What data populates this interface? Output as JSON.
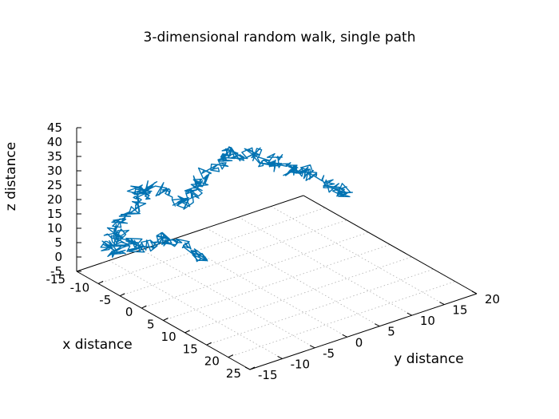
{
  "chart_data": {
    "type": "line",
    "projection": "3d",
    "title": "3-dimensional random walk, single path",
    "xlabel": "x distance",
    "ylabel": "y distance",
    "zlabel": "z distance",
    "xlim": [
      -15,
      25
    ],
    "ylim": [
      -15,
      20
    ],
    "zlim": [
      -5,
      45
    ],
    "grid": true,
    "x_ticks": [
      "-10",
      "-5",
      "0",
      "5",
      "10",
      "15",
      "20",
      "25"
    ],
    "y_ticks": [
      "-15",
      "-10",
      "-5",
      "0",
      "5",
      "10",
      "15",
      "20"
    ],
    "z_ticks": [
      "-5",
      "0",
      "5",
      "10",
      "15",
      "20",
      "25",
      "30",
      "35",
      "40",
      "45"
    ],
    "x_tick_values": [
      -10,
      -5,
      0,
      5,
      10,
      15,
      20,
      25
    ],
    "y_tick_values": [
      -15,
      -10,
      -5,
      0,
      5,
      10,
      15,
      20
    ],
    "z_tick_values": [
      -5,
      0,
      5,
      10,
      15,
      20,
      25,
      30,
      35,
      40,
      45
    ],
    "corner_label": "-15",
    "line_color": "#0072b2",
    "series": [
      {
        "style": "random walk, waypoints (x, y, z) approximated",
        "points": [
          [
            0,
            -6,
            5
          ],
          [
            1,
            -7,
            9
          ],
          [
            -1,
            -8,
            12
          ],
          [
            -3,
            -9,
            10
          ],
          [
            -2,
            -10,
            14
          ],
          [
            -4,
            -11,
            11
          ],
          [
            -6,
            -12,
            8
          ],
          [
            -5,
            -13,
            13
          ],
          [
            -7,
            -14,
            10
          ],
          [
            -8,
            -13,
            6
          ],
          [
            -10,
            -14,
            7
          ],
          [
            -9,
            -12,
            11
          ],
          [
            -11,
            -12,
            9
          ],
          [
            -12,
            -11,
            12
          ],
          [
            -10,
            -10,
            15
          ],
          [
            -11,
            -8,
            18
          ],
          [
            -13,
            -7,
            20
          ],
          [
            -12,
            -6,
            17
          ],
          [
            -14,
            -5,
            19
          ],
          [
            -13,
            -3,
            16
          ],
          [
            -11,
            -2,
            13
          ],
          [
            -12,
            0,
            10
          ],
          [
            -13,
            1,
            12
          ],
          [
            -12,
            2,
            15
          ],
          [
            -14,
            3,
            13
          ],
          [
            -13,
            4,
            18
          ],
          [
            -11,
            5,
            21
          ],
          [
            -12,
            6,
            24
          ],
          [
            -10,
            7,
            22
          ],
          [
            -9,
            8,
            25
          ],
          [
            -8,
            9,
            22
          ],
          [
            -7,
            10,
            19
          ],
          [
            -8,
            11,
            21
          ],
          [
            -6,
            12,
            18
          ],
          [
            -7,
            13,
            15
          ],
          [
            -5,
            14,
            17
          ],
          [
            -6,
            15,
            14
          ],
          [
            -4,
            16,
            13
          ],
          [
            -2,
            17,
            10
          ],
          [
            0,
            16,
            12
          ]
        ]
      }
    ]
  }
}
